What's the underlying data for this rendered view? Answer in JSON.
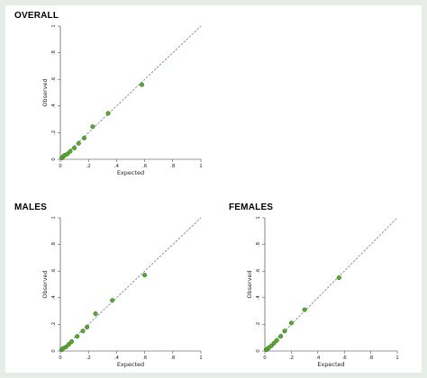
{
  "colors": {
    "marker_fill": "#5aa832",
    "marker_stroke": "#2f6b19",
    "reference_line": "#5b7fa6",
    "axis": "#333333"
  },
  "chart_data": [
    {
      "type": "scatter",
      "title": "OVERALL",
      "xlabel": "Expected",
      "ylabel": "Observed",
      "xlim": [
        0,
        1
      ],
      "ylim": [
        0,
        1
      ],
      "xticks": [
        "0",
        ".2",
        ".4",
        ".6",
        ".8",
        "1"
      ],
      "yticks": [
        "0",
        ".2",
        ".4",
        ".6",
        ".8",
        "1"
      ],
      "reference_line": "y = x",
      "grid": false,
      "points": [
        {
          "x": 0.01,
          "y": 0.01
        },
        {
          "x": 0.02,
          "y": 0.02
        },
        {
          "x": 0.03,
          "y": 0.03
        },
        {
          "x": 0.05,
          "y": 0.04
        },
        {
          "x": 0.07,
          "y": 0.06
        },
        {
          "x": 0.1,
          "y": 0.085
        },
        {
          "x": 0.13,
          "y": 0.12
        },
        {
          "x": 0.17,
          "y": 0.16
        },
        {
          "x": 0.23,
          "y": 0.245
        },
        {
          "x": 0.34,
          "y": 0.345
        },
        {
          "x": 0.58,
          "y": 0.56
        }
      ]
    },
    {
      "type": "scatter",
      "title": "MALES",
      "xlabel": "Expected",
      "ylabel": "Observed",
      "xlim": [
        0,
        1
      ],
      "ylim": [
        0,
        1
      ],
      "xticks": [
        "0",
        ".2",
        ".4",
        ".6",
        ".8",
        "1"
      ],
      "yticks": [
        "0",
        ".2",
        ".4",
        ".6",
        ".8",
        "1"
      ],
      "reference_line": "y = x",
      "grid": false,
      "points": [
        {
          "x": 0.01,
          "y": 0.01
        },
        {
          "x": 0.02,
          "y": 0.02
        },
        {
          "x": 0.04,
          "y": 0.03
        },
        {
          "x": 0.06,
          "y": 0.05
        },
        {
          "x": 0.08,
          "y": 0.07
        },
        {
          "x": 0.12,
          "y": 0.11
        },
        {
          "x": 0.16,
          "y": 0.15
        },
        {
          "x": 0.19,
          "y": 0.18
        },
        {
          "x": 0.25,
          "y": 0.28
        },
        {
          "x": 0.37,
          "y": 0.38
        },
        {
          "x": 0.6,
          "y": 0.57
        }
      ]
    },
    {
      "type": "scatter",
      "title": "FEMALES",
      "xlabel": "Expected",
      "ylabel": "Observed",
      "xlim": [
        0,
        1
      ],
      "ylim": [
        0,
        1
      ],
      "xticks": [
        "0",
        ".2",
        ".4",
        ".6",
        ".8",
        "1"
      ],
      "yticks": [
        "0",
        ".2",
        ".4",
        ".6",
        ".8",
        "1"
      ],
      "reference_line": "y = x",
      "grid": false,
      "points": [
        {
          "x": 0.01,
          "y": 0.01
        },
        {
          "x": 0.02,
          "y": 0.015
        },
        {
          "x": 0.03,
          "y": 0.025
        },
        {
          "x": 0.05,
          "y": 0.04
        },
        {
          "x": 0.07,
          "y": 0.06
        },
        {
          "x": 0.09,
          "y": 0.08
        },
        {
          "x": 0.12,
          "y": 0.11
        },
        {
          "x": 0.15,
          "y": 0.15
        },
        {
          "x": 0.2,
          "y": 0.21
        },
        {
          "x": 0.3,
          "y": 0.31
        },
        {
          "x": 0.56,
          "y": 0.55
        }
      ]
    }
  ]
}
